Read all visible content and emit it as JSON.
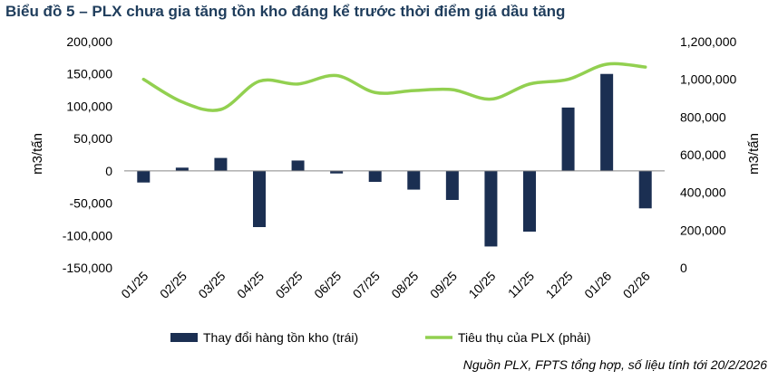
{
  "title": "Biểu đồ 5 – PLX chưa gia tăng tồn kho đáng kể trước thời điểm giá dầu tăng",
  "source": "Nguồn PLX, FPTS tổng hợp, số liệu tính tới 20/2/2026",
  "colors": {
    "bar": "#1b2f52",
    "line": "#92d050",
    "title": "#1f3d5c"
  },
  "chart_data": {
    "type": "bar+line",
    "categories": [
      "01/25",
      "02/25",
      "03/25",
      "04/25",
      "05/25",
      "06/25",
      "07/25",
      "08/25",
      "09/25",
      "10/25",
      "11/25",
      "12/25",
      "01/26",
      "02/26"
    ],
    "series": [
      {
        "name": "Thay đổi hàng tồn kho (trái)",
        "type": "bar",
        "axis": "left",
        "values": [
          -18000,
          5000,
          20000,
          -87000,
          16000,
          -4000,
          -17000,
          -29000,
          -45000,
          -117000,
          -94000,
          98000,
          150000,
          -58000
        ]
      },
      {
        "name": "Tiêu thụ của PLX (phải)",
        "type": "line",
        "axis": "right",
        "values": [
          1000000,
          880000,
          840000,
          990000,
          975000,
          1020000,
          930000,
          940000,
          945000,
          895000,
          975000,
          1000000,
          1080000,
          1065000
        ]
      }
    ],
    "ylabel_left": "m3/tấn",
    "ylabel_right": "m3/tấn",
    "ylim_left": [
      -150000,
      200000
    ],
    "ylim_right": [
      0,
      1200000
    ],
    "yticks_left": [
      "200,000",
      "150,000",
      "100,000",
      "50,000",
      "0",
      "-50,000",
      "-100,000",
      "-150,000"
    ],
    "yticks_right": [
      "1,200,000",
      "1,000,000",
      "800,000",
      "600,000",
      "400,000",
      "200,000",
      "0"
    ],
    "legend_position": "bottom"
  }
}
